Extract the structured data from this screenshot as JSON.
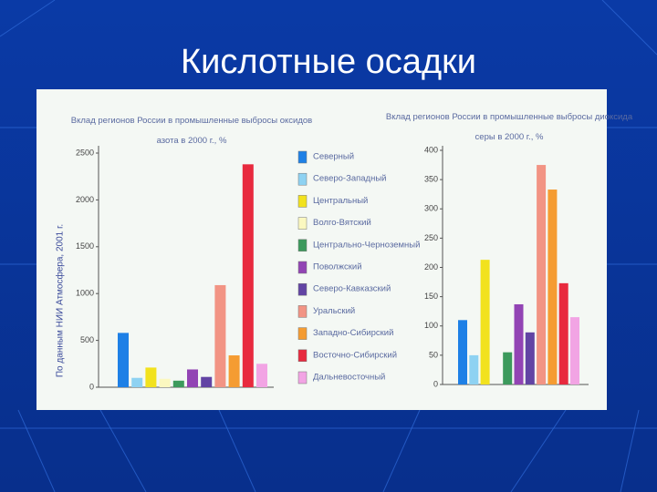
{
  "slide": {
    "title": "Кислотные осадки",
    "source": "По данным НИИ Атмосфера, 2001 г."
  },
  "chart_data": [
    {
      "type": "bar",
      "title": "Вклад регионов России в промышленные выбросы оксидов азота в 2000 г., %",
      "categories": [
        "Северный",
        "Северо-Западный",
        "Центральный",
        "Волго-Вятский",
        "Центрально-Черноземный",
        "Поволжский",
        "Северо-Кавказский",
        "Уральский",
        "Западно-Сибирский",
        "Восточно-Сибирский",
        "Дальневосточный"
      ],
      "values": [
        580,
        100,
        210,
        90,
        70,
        190,
        110,
        1090,
        340,
        2380,
        250
      ],
      "colors": [
        "#1e80e6",
        "#8ed2f2",
        "#f2e21e",
        "#fbf8c0",
        "#3c9a5c",
        "#9244b4",
        "#6244a4",
        "#f29484",
        "#f59c32",
        "#e82a3e",
        "#f2a4e4"
      ],
      "ylim": [
        0,
        2500
      ],
      "yticks": [
        0,
        500,
        1000,
        1500,
        2000,
        2500
      ]
    },
    {
      "type": "bar",
      "title": "Вклад регионов России в промышленные выбросы диоксида серы в 2000 г., %",
      "categories": [
        "Северный",
        "Северо-Западный",
        "Центральный",
        "Волго-Вятский",
        "Центрально-Черноземный",
        "Поволжский",
        "Северо-Кавказский",
        "Уральский",
        "Западно-Сибирский",
        "Восточно-Сибирский",
        "Дальневосточный"
      ],
      "values": [
        110,
        50,
        213,
        0,
        55,
        137,
        89,
        375,
        333,
        173,
        115
      ],
      "colors": [
        "#1e80e6",
        "#8ed2f2",
        "#f2e21e",
        "#fbf8c0",
        "#3c9a5c",
        "#9244b4",
        "#6244a4",
        "#f29484",
        "#f59c32",
        "#e82a3e",
        "#f2a4e4"
      ],
      "ylim": [
        0,
        400
      ],
      "yticks": [
        0,
        50,
        100,
        150,
        200,
        250,
        300,
        350,
        400
      ]
    }
  ]
}
